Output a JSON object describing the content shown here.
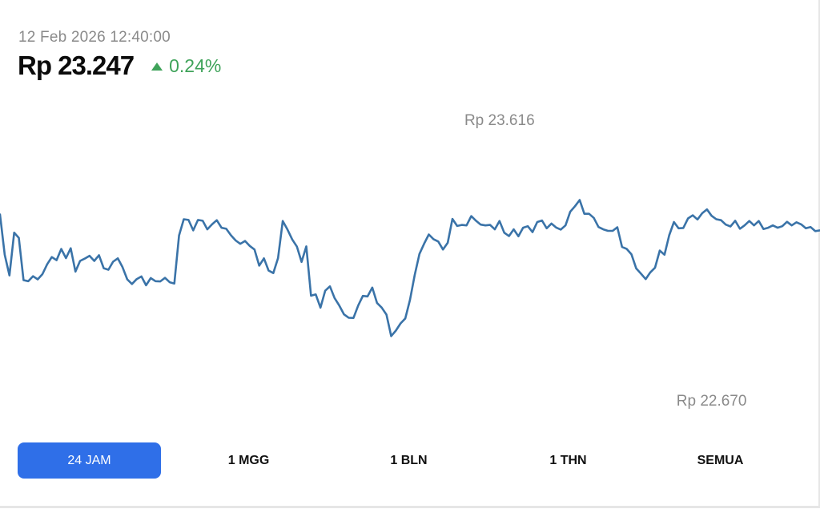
{
  "header": {
    "timestamp": "12 Feb 2026 12:40:00",
    "price": "Rp 23.247",
    "change": "0.24%",
    "change_direction_icon": "triangle-up-icon",
    "change_color": "#3fa35a"
  },
  "colors": {
    "line": "#3a73a8",
    "active_tab": "#2f6fe8",
    "muted_text": "#8a8a8a"
  },
  "tabs": [
    {
      "label": "24 JAM",
      "active": true
    },
    {
      "label": "1 MGG",
      "active": false
    },
    {
      "label": "1 BLN",
      "active": false
    },
    {
      "label": "1 THN",
      "active": false
    },
    {
      "label": "SEMUA",
      "active": false
    }
  ],
  "chart_data": {
    "type": "line",
    "grid": false,
    "annotations": {
      "high": {
        "label": "Rp 23.616",
        "value": 23616,
        "index": 106
      },
      "low": {
        "label": "Rp 22.670",
        "value": 22670,
        "index": 151
      }
    },
    "ylim": [
      22670,
      23616
    ],
    "series": [
      {
        "values": [
          23308,
          23153,
          23073,
          23238,
          23218,
          23055,
          23051,
          23070,
          23058,
          23078,
          23116,
          23144,
          23132,
          23175,
          23140,
          23178,
          23088,
          23129,
          23138,
          23149,
          23129,
          23151,
          23101,
          23095,
          23126,
          23139,
          23105,
          23058,
          23040,
          23059,
          23069,
          23035,
          23063,
          23051,
          23050,
          23064,
          23047,
          23042,
          23227,
          23290,
          23287,
          23247,
          23287,
          23284,
          23251,
          23270,
          23286,
          23257,
          23253,
          23228,
          23208,
          23195,
          23206,
          23187,
          23173,
          23111,
          23139,
          23092,
          23082,
          23140,
          23283,
          23250,
          23212,
          23184,
          23125,
          23185,
          22995,
          23000,
          22949,
          23014,
          23031,
          22986,
          22957,
          22923,
          22910,
          22909,
          22957,
          22994,
          22992,
          23026,
          22967,
          22949,
          22922,
          22839,
          22860,
          22888,
          22907,
          22979,
          23075,
          23156,
          23196,
          23231,
          23213,
          23204,
          23173,
          23199,
          23291,
          23264,
          23268,
          23266,
          23302,
          23284,
          23269,
          23266,
          23268,
          23251,
          23283,
          23238,
          23225,
          23251,
          23224,
          23257,
          23263,
          23240,
          23279,
          23285,
          23255,
          23273,
          23258,
          23250,
          23266,
          23319,
          23340,
          23364,
          23311,
          23311,
          23295,
          23260,
          23251,
          23245,
          23245,
          23259,
          23183,
          23175,
          23154,
          23100,
          23080,
          23059,
          23085,
          23103,
          23169,
          23153,
          23228,
          23279,
          23255,
          23256,
          23293,
          23305,
          23289,
          23313,
          23328,
          23303,
          23290,
          23286,
          23269,
          23262,
          23284,
          23253,
          23266,
          23283,
          23266,
          23283,
          23252,
          23257,
          23266,
          23257,
          23263,
          23280,
          23266,
          23278,
          23270,
          23255,
          23260,
          23244,
          23247
        ],
        "note": "approximate shape"
      }
    ]
  }
}
